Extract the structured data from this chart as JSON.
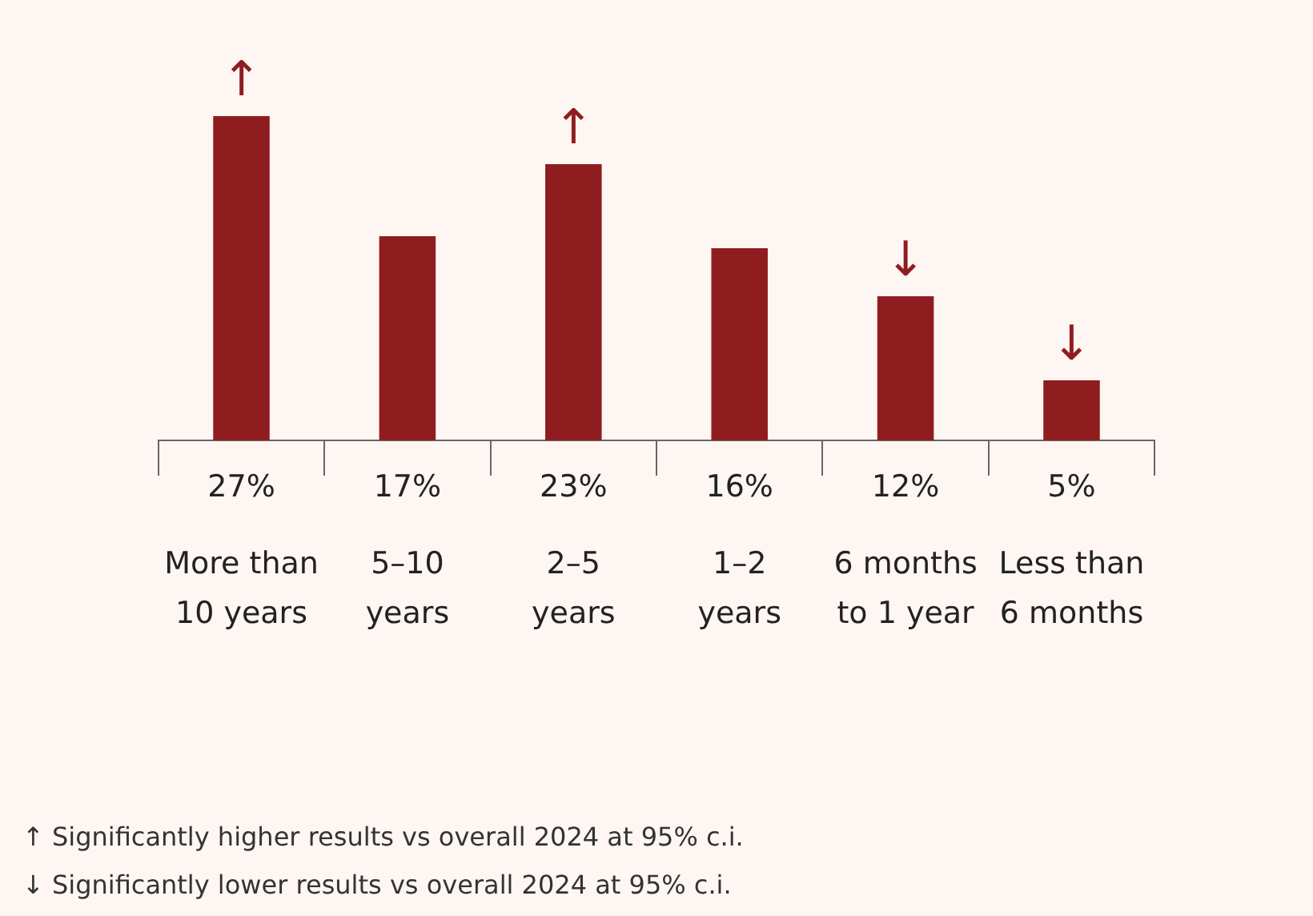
{
  "chart_data": {
    "type": "bar",
    "categories": [
      "More than 10 years",
      "5–10 years",
      "2–5 years",
      "1–2 years",
      "6 months to 1 year",
      "Less than 6 months"
    ],
    "values": [
      27,
      17,
      23,
      16,
      12,
      5
    ],
    "value_labels": [
      "27%",
      "17%",
      "23%",
      "16%",
      "12%",
      "5%"
    ],
    "color": "#8f1d1f",
    "annotations": [
      {
        "text": "↑",
        "x": "More than 10 years",
        "y": 27
      },
      {
        "text": "↑",
        "x": "2–5 years",
        "y": 23
      },
      {
        "text": "↓",
        "x": "6 months to 1 year",
        "y": 12
      },
      {
        "text": "↓",
        "x": "Less than 6 months",
        "y": 5
      },
      "↑ Significantly higher results vs overall 2024 at 95% c.i.",
      "↓ Significantly lower results vs overall 2024 at 95% c.i."
    ]
  }
}
